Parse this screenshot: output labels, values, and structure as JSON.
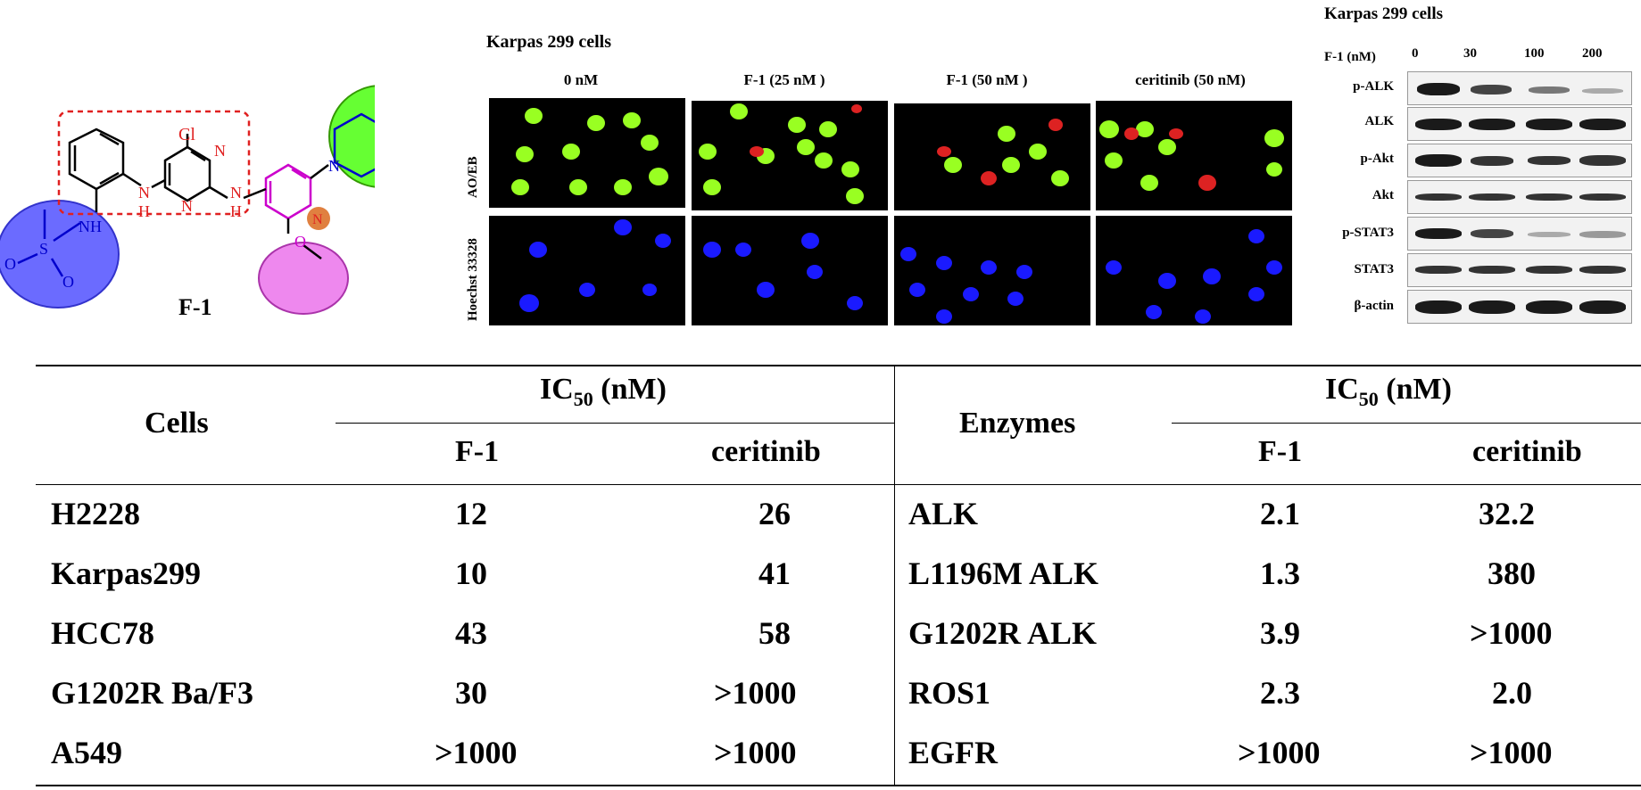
{
  "structure": {
    "label": "F-1",
    "atoms": {
      "cl": "Cl",
      "n_pyr1": "N",
      "n_pyr2": "N",
      "nh_left": "N",
      "h_left": "H",
      "nh_right": "N",
      "h_right": "H",
      "n_pyridine": "N",
      "nh_sulf": "NH",
      "s": "S",
      "o1": "O",
      "o2": "O",
      "o_meth": "O",
      "n_pip1": "N",
      "n_pip2": "N"
    }
  },
  "microscopy": {
    "title": "Karpas 299 cells",
    "columns": [
      "0 nM",
      "F-1 (25 nM )",
      "F-1 (50 nM )",
      "ceritinib (50 nM)"
    ],
    "rows": [
      "AO/EB",
      "Hoechst 33328"
    ]
  },
  "western_blot": {
    "title": "Karpas 299 cells",
    "dose_label": "F-1 (nM)",
    "doses": [
      "0",
      "30",
      "100",
      "200"
    ],
    "proteins": [
      "p-ALK",
      "ALK",
      "p-Akt",
      "Akt",
      "p-STAT3",
      "STAT3",
      "β-actin"
    ]
  },
  "table": {
    "left": {
      "header": "Cells",
      "group_header": "IC",
      "group_sub": "50",
      "group_unit": " (nM)",
      "cols": [
        "F-1",
        "ceritinib"
      ],
      "rows": [
        {
          "name": "H2228",
          "f1": "12",
          "ceritinib": "26"
        },
        {
          "name": "Karpas299",
          "f1": "10",
          "ceritinib": "41"
        },
        {
          "name": "HCC78",
          "f1": "43",
          "ceritinib": "58"
        },
        {
          "name": "G1202R Ba/F3",
          "f1": "30",
          "ceritinib": ">1000"
        },
        {
          "name": "A549",
          "f1": ">1000",
          "ceritinib": ">1000"
        }
      ]
    },
    "right": {
      "header": "Enzymes",
      "group_header": "IC",
      "group_sub": "50",
      "group_unit": " (nM)",
      "cols": [
        "F-1",
        "ceritinib"
      ],
      "rows": [
        {
          "name": "ALK",
          "f1": "2.1",
          "ceritinib": "32.2"
        },
        {
          "name": "L1196M ALK",
          "f1": "1.3",
          "ceritinib": "380"
        },
        {
          "name": "G1202R ALK",
          "f1": "3.9",
          "ceritinib": ">1000"
        },
        {
          "name": "ROS1",
          "f1": "2.3",
          "ceritinib": "2.0"
        },
        {
          "name": "EGFR",
          "f1": ">1000",
          "ceritinib": ">1000"
        }
      ]
    }
  }
}
